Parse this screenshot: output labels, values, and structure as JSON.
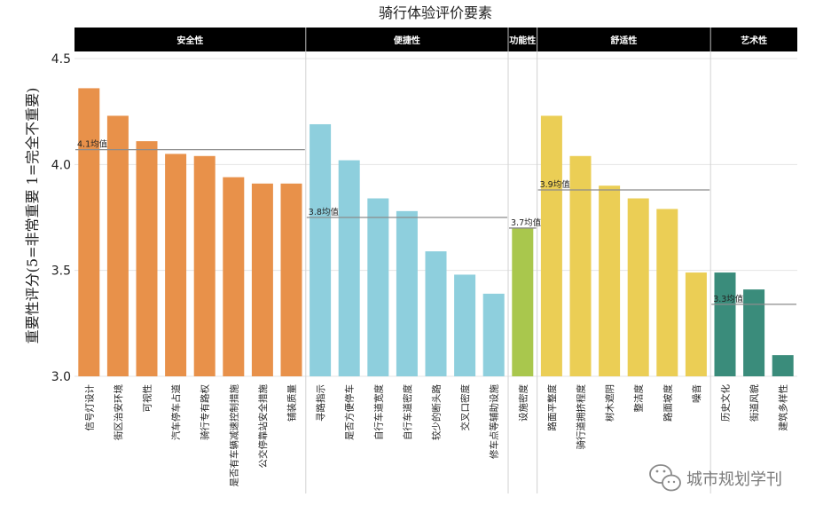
{
  "chart_data": {
    "type": "bar",
    "title": "骑行体验评价要素",
    "ylabel": "重要性评分(5=非常重要 1=完全不重要)",
    "ylim": [
      3.0,
      4.5
    ],
    "yticks": [
      "3.0",
      "3.5",
      "4.0",
      "4.5"
    ],
    "grid": true,
    "groups": [
      {
        "name": "安全性",
        "color": "#E8914A",
        "avg_label": "4.1均值",
        "avg_value": 4.07,
        "categories": [
          "信号灯设计",
          "街区治安环境",
          "可视性",
          "汽车停车占道",
          "骑行专有路权",
          "是否有车辆减速控制措施",
          "公交停靠站安全措施",
          "铺装质量"
        ],
        "values": [
          4.36,
          4.23,
          4.11,
          4.05,
          4.04,
          3.94,
          3.91,
          3.91
        ]
      },
      {
        "name": "便捷性",
        "color": "#8ECFDD",
        "avg_label": "3.8均值",
        "avg_value": 3.75,
        "categories": [
          "寻路指示",
          "是否方便停车",
          "自行车道宽度",
          "自行车道密度",
          "较少的断头路",
          "交叉口密度",
          "修车点等辅助设施"
        ],
        "values": [
          4.19,
          4.02,
          3.84,
          3.78,
          3.59,
          3.48,
          3.39
        ]
      },
      {
        "name": "功能性",
        "color": "#A9C74D",
        "avg_label": "3.7均值",
        "avg_value": 3.7,
        "categories": [
          "设施密度"
        ],
        "values": [
          3.7
        ]
      },
      {
        "name": "舒适性",
        "color": "#EBCE55",
        "avg_label": "3.9均值",
        "avg_value": 3.88,
        "categories": [
          "路面平整度",
          "骑行道拥挤程度",
          "树木遮阴",
          "整洁度",
          "路面坡度",
          "噪音"
        ],
        "values": [
          4.23,
          4.04,
          3.9,
          3.84,
          3.79,
          3.49
        ]
      },
      {
        "name": "艺术性",
        "color": "#3A8C7B",
        "avg_label": "3.3均值",
        "avg_value": 3.34,
        "categories": [
          "历史文化",
          "街道风貌",
          "建筑多样性"
        ],
        "values": [
          3.49,
          3.41,
          3.1
        ]
      }
    ]
  },
  "watermark": {
    "text": "城市规划学刊",
    "icon": "wechat-icon"
  }
}
